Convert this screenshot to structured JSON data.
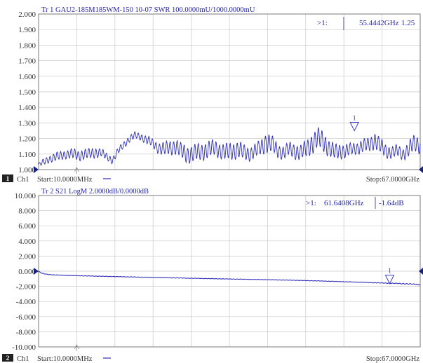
{
  "colors": {
    "trace": "#2b2bb8",
    "trace_text": "#2222aa",
    "marker": "#3c3ccc",
    "grid": "#c8c8c8",
    "frame": "#7a7a7a",
    "tick_text": "#333333",
    "footer_text": "#333333",
    "pointer": "#1a237e",
    "chip_bg": "#222222",
    "chip_text": "#ffffff"
  },
  "chart_data": [
    {
      "type": "line",
      "header": "Tr 1  GAU2-185M185WM-150 10-07  SWR 100.0000mU/1000.0000mU",
      "y_ticks": [
        "2.000",
        "1.900",
        "1.800",
        "1.700",
        "1.600",
        "1.500",
        "1.400",
        "1.300",
        "1.200",
        "1.100",
        "1.000"
      ],
      "ylim": [
        1.0,
        2.0
      ],
      "xlim": [
        0.01,
        67.0
      ],
      "x_unit": "GHz",
      "reference_value": 1.0,
      "marker": {
        "label": "1",
        "x": 55.4442,
        "y": 1.25
      },
      "marker_readout": {
        "prefix": ">1:",
        "freq": "55.4442GHz",
        "value": "1.25"
      },
      "footer": {
        "channel_chip": "1",
        "channel": "Ch1",
        "start": "Start:10.0000MHz",
        "stop": "Stop:67.0000GHz"
      },
      "x": [
        0.01,
        1,
        2,
        3,
        4,
        5,
        6,
        7,
        8,
        9,
        10,
        11,
        12,
        13,
        14,
        15,
        16,
        17,
        18,
        19,
        20,
        21,
        22,
        23,
        24,
        25,
        26,
        27,
        28,
        29,
        30,
        31,
        32,
        33,
        34,
        35,
        36,
        37,
        38,
        39,
        40,
        41,
        42,
        43,
        44,
        45,
        46,
        47,
        48,
        49,
        50,
        51,
        52,
        53,
        54,
        55,
        56,
        57,
        58,
        59,
        60,
        61,
        62,
        63,
        64,
        65,
        66,
        67
      ],
      "y": [
        1.03,
        1.05,
        1.07,
        1.08,
        1.09,
        1.1,
        1.1,
        1.09,
        1.1,
        1.1,
        1.11,
        1.11,
        1.08,
        1.06,
        1.12,
        1.16,
        1.2,
        1.22,
        1.21,
        1.19,
        1.17,
        1.14,
        1.13,
        1.14,
        1.15,
        1.12,
        1.1,
        1.1,
        1.11,
        1.12,
        1.13,
        1.14,
        1.12,
        1.11,
        1.12,
        1.13,
        1.11,
        1.1,
        1.12,
        1.14,
        1.18,
        1.16,
        1.12,
        1.11,
        1.13,
        1.12,
        1.11,
        1.13,
        1.17,
        1.2,
        1.18,
        1.14,
        1.11,
        1.12,
        1.12,
        1.13,
        1.14,
        1.15,
        1.16,
        1.19,
        1.15,
        1.12,
        1.11,
        1.12,
        1.1,
        1.13,
        1.17,
        1.16
      ],
      "ripple": [
        0.01,
        0.02,
        0.02,
        0.025,
        0.025,
        0.025,
        0.03,
        0.03,
        0.03,
        0.03,
        0.03,
        0.025,
        0.02,
        0.02,
        0.02,
        0.02,
        0.02,
        0.02,
        0.02,
        0.025,
        0.025,
        0.03,
        0.04,
        0.04,
        0.045,
        0.045,
        0.05,
        0.05,
        0.05,
        0.05,
        0.05,
        0.045,
        0.045,
        0.05,
        0.05,
        0.05,
        0.045,
        0.04,
        0.04,
        0.045,
        0.06,
        0.05,
        0.04,
        0.04,
        0.04,
        0.045,
        0.045,
        0.05,
        0.06,
        0.06,
        0.06,
        0.05,
        0.045,
        0.045,
        0.04,
        0.035,
        0.035,
        0.04,
        0.04,
        0.05,
        0.045,
        0.04,
        0.035,
        0.035,
        0.035,
        0.045,
        0.05,
        0.05
      ]
    },
    {
      "type": "line",
      "header": "Tr 2  S21 LogM 2.0000dB/0.0000dB",
      "y_ticks": [
        "10.000",
        "8.000",
        "6.000",
        "4.000",
        "2.000",
        "0.000",
        "-2.000",
        "-4.000",
        "-6.000",
        "-8.000",
        "-10.000"
      ],
      "ylim": [
        -10.0,
        10.0
      ],
      "xlim": [
        0.01,
        67.0
      ],
      "x_unit": "GHz",
      "reference_value": 0.0,
      "marker": {
        "label": "1",
        "x": 61.6408,
        "y": -1.64
      },
      "marker_readout": {
        "prefix": ">1:",
        "freq": "61.6408GHz",
        "value": "-1.64dB"
      },
      "footer": {
        "channel_chip": "2",
        "channel": "Ch1",
        "start": "Start:10.0000MHz",
        "stop": "Stop:67.0000GHz"
      },
      "x": [
        0.01,
        0.5,
        1,
        2,
        3,
        5,
        7,
        10,
        14,
        20,
        25,
        30,
        35,
        40,
        45,
        50,
        55,
        60,
        63,
        65,
        67
      ],
      "y": [
        0.0,
        -0.25,
        -0.35,
        -0.45,
        -0.5,
        -0.55,
        -0.6,
        -0.65,
        -0.72,
        -0.82,
        -0.9,
        -0.98,
        -1.05,
        -1.12,
        -1.2,
        -1.3,
        -1.42,
        -1.55,
        -1.62,
        -1.68,
        -1.78
      ],
      "ripple": [
        0.0,
        0.02,
        0.02,
        0.02,
        0.02,
        0.02,
        0.02,
        0.02,
        0.02,
        0.02,
        0.02,
        0.02,
        0.02,
        0.02,
        0.02,
        0.02,
        0.02,
        0.03,
        0.04,
        0.05,
        0.05
      ]
    }
  ]
}
